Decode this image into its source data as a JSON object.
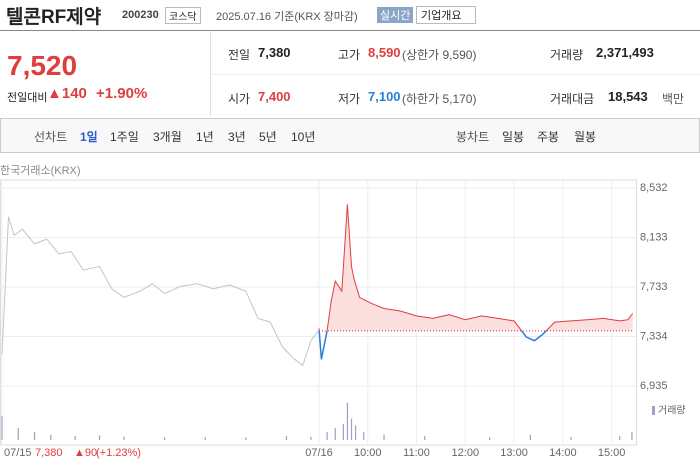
{
  "header": {
    "name": "텔콘RF제약",
    "code": "200230",
    "market": "코스닥",
    "date": "2025.07.16 기준(KRX 장마감)",
    "realtime": "실시간",
    "overview": "기업개요"
  },
  "quote": {
    "price": "7,520",
    "change_label": "전일대비",
    "change": "140",
    "change_pct": "+1.90%"
  },
  "stats": [
    [
      {
        "label": "전일",
        "value": "7,380"
      },
      {
        "label": "고가",
        "value": "8,590",
        "sub": "(상한가 9,590)"
      },
      {
        "label": "거래량",
        "value": "2,371,493"
      }
    ],
    [
      {
        "label": "시가",
        "value": "7,400"
      },
      {
        "label": "저가",
        "value": "7,100",
        "sub": "(하한가 5,170)"
      },
      {
        "label": "거래대금",
        "value": "18,543",
        "sub": "백만"
      }
    ]
  ],
  "tabs": {
    "line_label": "선차트",
    "line": [
      "1일",
      "1주일",
      "3개월",
      "1년",
      "3년",
      "5년",
      "10년"
    ],
    "candle_label": "봉차트",
    "candle": [
      "일봉",
      "주봉",
      "월봉"
    ]
  },
  "chart_data": {
    "type": "line",
    "source": "한국거래소(KRX)",
    "xlim": [
      0,
      780
    ],
    "ylim": [
      6935,
      8532
    ],
    "yticks": [
      {
        "value": 8532,
        "label": "8,532"
      },
      {
        "value": 8133,
        "label": "8,133"
      },
      {
        "value": 7733,
        "label": "7,733"
      },
      {
        "value": 7334,
        "label": "7,334"
      },
      {
        "value": 6935,
        "label": "6,935"
      }
    ],
    "xticks": [
      {
        "value": 0,
        "label": "07/15"
      },
      {
        "value": 390,
        "label": "07/16"
      },
      {
        "value": 450,
        "label": "10:00"
      },
      {
        "value": 510,
        "label": "11:00"
      },
      {
        "value": 570,
        "label": "12:00"
      },
      {
        "value": 630,
        "label": "13:00"
      },
      {
        "value": 690,
        "label": "14:00"
      },
      {
        "value": 750,
        "label": "15:00"
      }
    ],
    "baseline": 7380,
    "up_color": "#e03d3d",
    "down_color": "#2b7fd6",
    "series": [
      {
        "color": "#c4c4c4",
        "x": [
          0,
          8,
          15,
          25,
          40,
          55,
          70,
          85,
          100,
          120,
          135,
          150,
          170,
          185,
          200,
          220,
          240,
          260,
          280,
          300,
          315,
          330,
          345,
          360,
          370,
          380,
          389
        ],
        "values": [
          7190,
          8300,
          8150,
          8200,
          8080,
          8120,
          8000,
          8020,
          7870,
          7900,
          7720,
          7650,
          7700,
          7760,
          7680,
          7740,
          7760,
          7720,
          7750,
          7700,
          7480,
          7450,
          7250,
          7150,
          7100,
          7300,
          7380
        ]
      },
      {
        "color": "#e03d3d",
        "x": [
          390,
          393,
          400,
          405,
          410,
          418,
          425,
          430,
          433,
          440,
          455,
          470,
          490,
          510,
          530,
          550,
          570,
          590,
          610,
          630,
          645,
          655,
          665,
          680,
          700,
          720,
          740,
          760,
          770,
          776
        ],
        "values": [
          7400,
          7150,
          7380,
          7620,
          7780,
          7700,
          8400,
          7900,
          7800,
          7650,
          7600,
          7560,
          7540,
          7500,
          7480,
          7510,
          7470,
          7500,
          7480,
          7460,
          7330,
          7300,
          7350,
          7450,
          7460,
          7470,
          7480,
          7460,
          7470,
          7520
        ]
      }
    ],
    "volume": {
      "name": "거래량",
      "color": "#a99bc9",
      "vlim": [
        0,
        300000
      ],
      "x": [
        0,
        20,
        40,
        60,
        90,
        120,
        150,
        200,
        250,
        300,
        350,
        380,
        400,
        410,
        420,
        425,
        430,
        435,
        445,
        470,
        520,
        600,
        650,
        700,
        760,
        775
      ],
      "values": [
        180000,
        90000,
        60000,
        40000,
        30000,
        35000,
        25000,
        20000,
        22000,
        20000,
        30000,
        25000,
        60000,
        90000,
        120000,
        280000,
        160000,
        110000,
        60000,
        40000,
        30000,
        20000,
        40000,
        25000,
        30000,
        60000
      ]
    },
    "footer": {
      "date": "07/15",
      "price": "7,380",
      "change": "▲90",
      "pct": "(+1.23%)"
    }
  }
}
